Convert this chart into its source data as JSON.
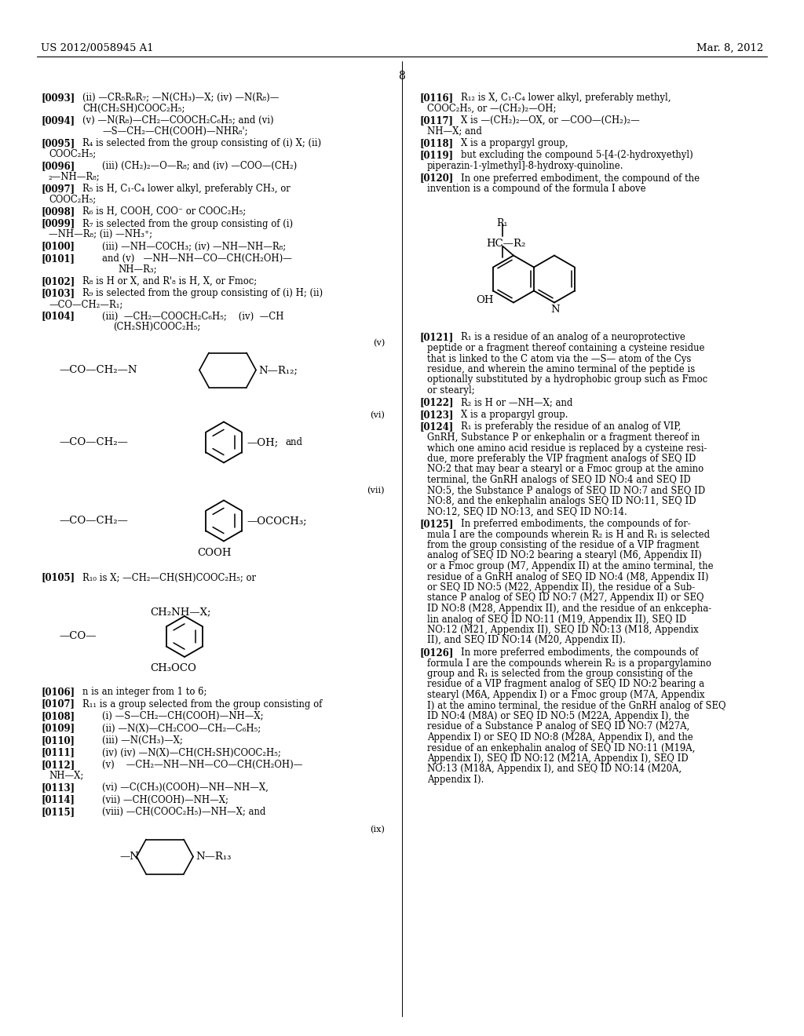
{
  "background_color": "#ffffff",
  "header_left": "US 2012/0058945 A1",
  "header_right": "Mar. 8, 2012",
  "page_number": "8"
}
